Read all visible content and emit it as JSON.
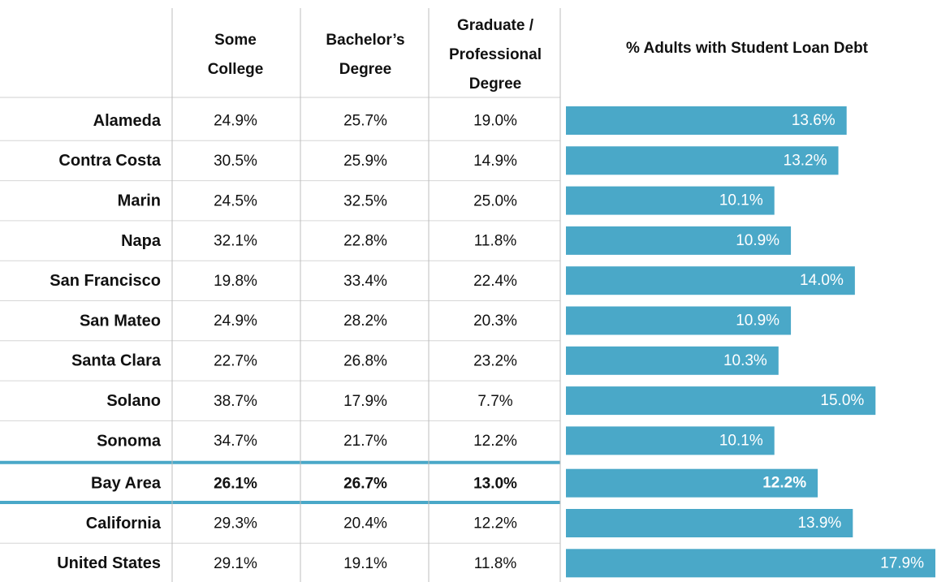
{
  "table": {
    "headers": [
      [
        "Some",
        "College"
      ],
      [
        "Bachelor’s",
        "Degree"
      ],
      [
        "Graduate /",
        "Professional",
        "Degree"
      ],
      [
        "% Adults with Student Loan Debt"
      ]
    ],
    "bar_color": "#4aa8c8",
    "rows": [
      {
        "label": "Alameda",
        "cells": [
          "24.9%",
          "25.7%",
          "19.0%"
        ],
        "bar_value": 13.6,
        "bar_label": "13.6%"
      },
      {
        "label": "Contra Costa",
        "cells": [
          "30.5%",
          "25.9%",
          "14.9%"
        ],
        "bar_value": 13.2,
        "bar_label": "13.2%"
      },
      {
        "label": "Marin",
        "cells": [
          "24.5%",
          "32.5%",
          "25.0%"
        ],
        "bar_value": 10.1,
        "bar_label": "10.1%"
      },
      {
        "label": "Napa",
        "cells": [
          "32.1%",
          "22.8%",
          "11.8%"
        ],
        "bar_value": 10.9,
        "bar_label": "10.9%"
      },
      {
        "label": "San Francisco",
        "cells": [
          "19.8%",
          "33.4%",
          "22.4%"
        ],
        "bar_value": 14.0,
        "bar_label": "14.0%"
      },
      {
        "label": "San Mateo",
        "cells": [
          "24.9%",
          "28.2%",
          "20.3%"
        ],
        "bar_value": 10.9,
        "bar_label": "10.9%"
      },
      {
        "label": "Santa Clara",
        "cells": [
          "22.7%",
          "26.8%",
          "23.2%"
        ],
        "bar_value": 10.3,
        "bar_label": "10.3%"
      },
      {
        "label": "Solano",
        "cells": [
          "38.7%",
          "17.9%",
          "7.7%"
        ],
        "bar_value": 15.0,
        "bar_label": "15.0%"
      },
      {
        "label": "Sonoma",
        "cells": [
          "34.7%",
          "21.7%",
          "12.2%"
        ],
        "bar_value": 10.1,
        "bar_label": "10.1%"
      },
      {
        "label": "Bay Area",
        "cells": [
          "26.1%",
          "26.7%",
          "13.0%"
        ],
        "bar_value": 12.2,
        "bar_label": "12.2%",
        "bold": true
      },
      {
        "label": "California",
        "cells": [
          "29.3%",
          "20.4%",
          "12.2%"
        ],
        "bar_value": 13.9,
        "bar_label": "13.9%"
      },
      {
        "label": "United States",
        "cells": [
          "29.1%",
          "19.1%",
          "11.8%"
        ],
        "bar_value": 17.9,
        "bar_label": "17.9%"
      }
    ]
  }
}
